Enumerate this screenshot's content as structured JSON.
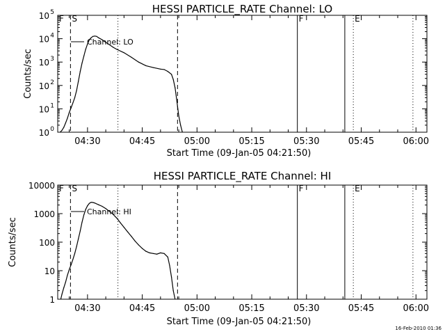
{
  "footer": {
    "timestamp": "16-Feb-2010 01:36"
  },
  "chart_data": [
    {
      "type": "line",
      "title": "HESSI PARTICLE_RATE Channel: LO",
      "xlabel": "Start Time (09-Jan-05 04:21:50)",
      "ylabel": "Counts/sec",
      "yscale": "log",
      "ylim": [
        1,
        100000
      ],
      "xlim": [
        "04:21:50",
        "06:03:00"
      ],
      "xticks": [
        "04:30",
        "04:45",
        "05:00",
        "05:15",
        "05:30",
        "05:45",
        "06:00"
      ],
      "yticks": [
        1,
        10,
        100,
        1000,
        10000,
        100000
      ],
      "ytick_labels": [
        "10",
        "10",
        "10",
        "10",
        "10",
        "10"
      ],
      "ytick_exponents": [
        "0",
        "1",
        "2",
        "3",
        "4",
        "5"
      ],
      "grid": false,
      "legend": "top-left",
      "series": [
        {
          "name": "Channel: LO",
          "x": [
            "04:22:30",
            "04:23:00",
            "04:23:30",
            "04:24:00",
            "04:24:30",
            "04:25:00",
            "04:25:30",
            "04:26:00",
            "04:26:30",
            "04:27:00",
            "04:27:30",
            "04:28:00",
            "04:28:30",
            "04:29:00",
            "04:29:30",
            "04:30:00",
            "04:30:30",
            "04:31:00",
            "04:31:30",
            "04:32:00",
            "04:32:30",
            "04:33:00",
            "04:34:00",
            "04:35:00",
            "04:36:00",
            "04:37:00",
            "04:38:00",
            "04:40:00",
            "04:42:00",
            "04:44:00",
            "04:46:00",
            "04:48:00",
            "04:50:00",
            "04:51:00",
            "04:52:00",
            "04:53:00",
            "04:53:30",
            "04:54:00",
            "04:54:30",
            "04:55:00",
            "04:55:30",
            "04:56:00"
          ],
          "values": [
            1,
            1.2,
            1.6,
            2.5,
            4,
            7,
            11,
            18,
            30,
            60,
            150,
            400,
            900,
            1800,
            3500,
            6000,
            9000,
            11000,
            12500,
            13000,
            12500,
            11000,
            9000,
            7000,
            5500,
            4300,
            3500,
            2500,
            1600,
            1000,
            700,
            580,
            500,
            480,
            400,
            300,
            180,
            80,
            20,
            5,
            2,
            1
          ]
        }
      ],
      "markers": [
        {
          "label": "F",
          "time": "04:21:50",
          "style": "solid"
        },
        {
          "label": "S",
          "time": "04:25:20",
          "style": "dashed"
        },
        {
          "label": "",
          "time": "04:38:20",
          "style": "dotted"
        },
        {
          "label": "",
          "time": "04:54:40",
          "style": "dashed"
        },
        {
          "label": "F",
          "time": "05:27:30",
          "style": "solid"
        },
        {
          "label": "",
          "time": "05:40:30",
          "style": "solid"
        },
        {
          "label": "E",
          "time": "05:42:50",
          "style": "dotted"
        },
        {
          "label": "",
          "time": "05:59:10",
          "style": "dotted"
        }
      ]
    },
    {
      "type": "line",
      "title": "HESSI PARTICLE_RATE Channel: HI",
      "xlabel": "Start Time (09-Jan-05 04:21:50)",
      "ylabel": "Counts/sec",
      "yscale": "log",
      "ylim": [
        1,
        10000
      ],
      "xlim": [
        "04:21:50",
        "06:03:00"
      ],
      "xticks": [
        "04:30",
        "04:45",
        "05:00",
        "05:15",
        "05:30",
        "05:45",
        "06:00"
      ],
      "yticks": [
        1,
        10,
        100,
        1000,
        10000
      ],
      "ytick_labels": [
        "1",
        "10",
        "100",
        "1000",
        "10000"
      ],
      "grid": false,
      "legend": "top-left",
      "series": [
        {
          "name": "Channel: HI",
          "x": [
            "04:22:40",
            "04:23:00",
            "04:23:30",
            "04:24:00",
            "04:24:30",
            "04:25:00",
            "04:25:30",
            "04:26:00",
            "04:26:30",
            "04:27:00",
            "04:27:30",
            "04:28:00",
            "04:28:30",
            "04:29:00",
            "04:29:30",
            "04:30:00",
            "04:30:30",
            "04:31:00",
            "04:31:30",
            "04:32:00",
            "04:32:30",
            "04:33:00",
            "04:34:00",
            "04:35:00",
            "04:36:00",
            "04:37:00",
            "04:38:00",
            "04:39:00",
            "04:40:00",
            "04:41:00",
            "04:42:00",
            "04:43:00",
            "04:44:00",
            "04:45:00",
            "04:46:00",
            "04:47:00",
            "04:48:00",
            "04:49:00",
            "04:50:00",
            "04:51:00",
            "04:52:00",
            "04:52:30",
            "04:53:00",
            "04:53:30",
            "04:54:00"
          ],
          "values": [
            1,
            1.5,
            2.5,
            4,
            7,
            11,
            16,
            25,
            40,
            70,
            130,
            250,
            500,
            900,
            1400,
            1900,
            2300,
            2500,
            2450,
            2350,
            2200,
            2050,
            1800,
            1500,
            1200,
            950,
            700,
            480,
            330,
            230,
            160,
            110,
            80,
            60,
            48,
            42,
            40,
            38,
            42,
            40,
            30,
            15,
            6,
            2,
            1
          ]
        }
      ],
      "markers": [
        {
          "label": "F",
          "time": "04:21:50",
          "style": "solid"
        },
        {
          "label": "S",
          "time": "04:25:20",
          "style": "dashed"
        },
        {
          "label": "",
          "time": "04:38:20",
          "style": "dotted"
        },
        {
          "label": "",
          "time": "04:54:40",
          "style": "dashed"
        },
        {
          "label": "F",
          "time": "05:27:30",
          "style": "solid"
        },
        {
          "label": "",
          "time": "05:40:30",
          "style": "solid"
        },
        {
          "label": "E",
          "time": "05:42:50",
          "style": "dotted"
        },
        {
          "label": "",
          "time": "05:59:10",
          "style": "dotted"
        }
      ]
    }
  ]
}
